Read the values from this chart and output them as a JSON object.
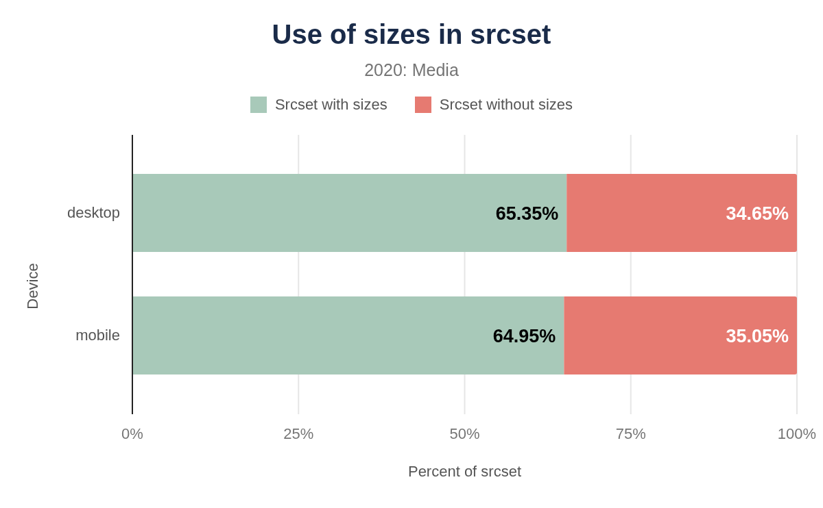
{
  "chart_data": {
    "type": "bar",
    "orientation": "horizontal",
    "stacked": true,
    "title": "Use of sizes in srcset",
    "subtitle": "2020: Media",
    "xlabel": "Percent of srcset",
    "ylabel": "Device",
    "categories": [
      "desktop",
      "mobile"
    ],
    "series": [
      {
        "name": "Srcset with sizes",
        "color": "#a8c9b9",
        "values": [
          65.35,
          64.95
        ],
        "value_labels": [
          "65.35%",
          "64.95%"
        ]
      },
      {
        "name": "Srcset without sizes",
        "color": "#e67a71",
        "values": [
          34.65,
          35.05
        ],
        "value_labels": [
          "34.65%",
          "35.05%"
        ]
      }
    ],
    "xlim": [
      0,
      100
    ],
    "xticks": [
      {
        "value": 0,
        "label": "0%"
      },
      {
        "value": 25,
        "label": "25%"
      },
      {
        "value": 50,
        "label": "50%"
      },
      {
        "value": 75,
        "label": "75%"
      },
      {
        "value": 100,
        "label": "100%"
      }
    ],
    "grid": "x",
    "legend": "top"
  }
}
